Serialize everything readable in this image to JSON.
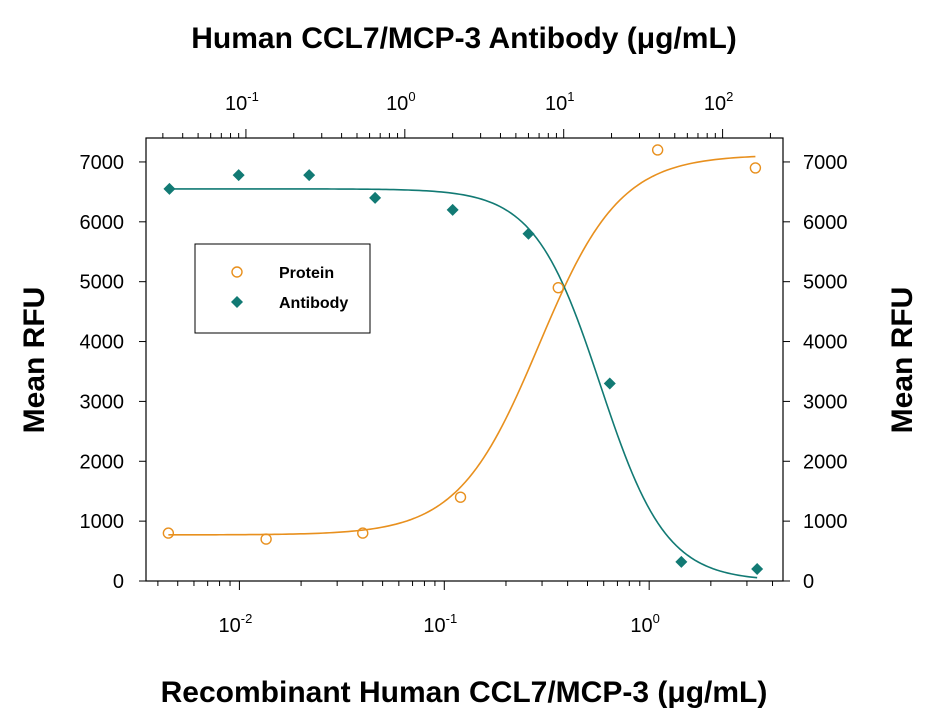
{
  "chart_data": {
    "type": "scatter",
    "top_axis_title": "Human CCL7/MCP-3 Antibody (μg/mL)",
    "bottom_axis_title": "Recombinant Human CCL7/MCP-3 (μg/mL)",
    "left_axis_title": "Mean RFU",
    "right_axis_title": "Mean RFU",
    "x_bottom": {
      "scale": "log",
      "range": [
        0.0035,
        4.5
      ],
      "tick_labels": [
        "10",
        "10",
        "10"
      ],
      "tick_exponents": [
        "-2",
        "-1",
        "0"
      ],
      "tick_values": [
        0.01,
        0.1,
        1
      ]
    },
    "x_top": {
      "scale": "log",
      "range": [
        0.0235,
        240
      ],
      "tick_labels": [
        "10",
        "10",
        "10",
        "10"
      ],
      "tick_exponents": [
        "-1",
        "0",
        "1",
        "2"
      ],
      "tick_values": [
        0.1,
        1,
        10,
        100
      ]
    },
    "y": {
      "range": [
        0,
        7400
      ],
      "ticks": [
        0,
        1000,
        2000,
        3000,
        4000,
        5000,
        6000,
        7000
      ],
      "tick_labels": [
        "0",
        "1000",
        "2000",
        "3000",
        "4000",
        "5000",
        "6000",
        "7000"
      ]
    },
    "grid": false,
    "legend": {
      "position": "upper-left",
      "entries": [
        "Protein",
        "Antibody"
      ]
    },
    "series": [
      {
        "name": "Protein",
        "axis": "bottom",
        "marker": "open-circle",
        "color": "#e8901e",
        "x": [
          0.0045,
          0.0135,
          0.04,
          0.12,
          0.36,
          1.1,
          3.3
        ],
        "y": [
          800,
          700,
          800,
          1400,
          4900,
          7200,
          6900
        ],
        "fit": {
          "bottom": 770,
          "top": 7120,
          "ec50": 0.29,
          "hill": 2.2
        }
      },
      {
        "name": "Antibody",
        "axis": "top",
        "marker": "filled-diamond",
        "color": "#127a74",
        "x": [
          0.033,
          0.09,
          0.25,
          0.65,
          2.0,
          6.0,
          19.5,
          55,
          165
        ],
        "y": [
          6550,
          6780,
          6780,
          6400,
          6200,
          5800,
          3300,
          320,
          200
        ],
        "fit": {
          "bottom": 0,
          "top": 6550,
          "ec50": 17,
          "hill": 2.1
        }
      }
    ]
  }
}
